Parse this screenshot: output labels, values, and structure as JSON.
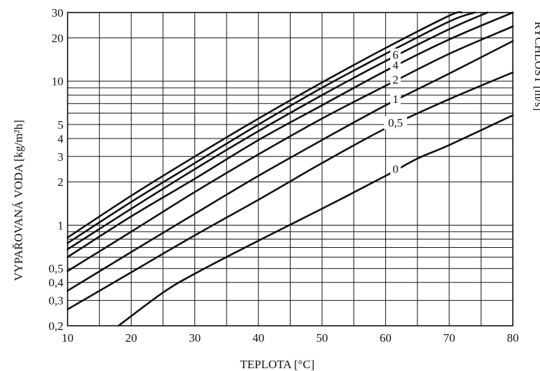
{
  "chart_data": {
    "type": "line",
    "xlabel": "TEPLOTA [°C]",
    "ylabel": "VYPAŘOVANÁ VODA [kg/m²h]",
    "y2label": "RYCHLOST [m/s]",
    "xlim": [
      10,
      80
    ],
    "ylim": [
      0.2,
      30
    ],
    "yscale": "log",
    "grid": true,
    "x_ticks": [
      10,
      20,
      30,
      40,
      50,
      60,
      70,
      80
    ],
    "y_ticks": [
      {
        "value": 0.2,
        "label": "0,2"
      },
      {
        "value": 0.3,
        "label": "0,3"
      },
      {
        "value": 0.4,
        "label": "0,4"
      },
      {
        "value": 0.5,
        "label": "0,5"
      },
      {
        "value": 1,
        "label": "1"
      },
      {
        "value": 2,
        "label": "2"
      },
      {
        "value": 3,
        "label": "3"
      },
      {
        "value": 4,
        "label": "4"
      },
      {
        "value": 5,
        "label": "5"
      },
      {
        "value": 10,
        "label": "10"
      },
      {
        "value": 20,
        "label": "20"
      },
      {
        "value": 30,
        "label": "30"
      }
    ],
    "y_minor_gridlines": [
      0.6,
      0.7,
      0.8,
      0.9,
      6,
      7,
      8,
      9
    ],
    "x_minor_gridlines": [
      15,
      25,
      35,
      45,
      55,
      65,
      75
    ],
    "series": [
      {
        "name": "0",
        "x": [
          18,
          25,
          30,
          40,
          50,
          60,
          65,
          70,
          80
        ],
        "y": [
          0.2,
          0.34,
          0.46,
          0.78,
          1.3,
          2.2,
          2.9,
          3.6,
          5.8
        ]
      },
      {
        "name": "0,5",
        "x": [
          10,
          20,
          30,
          40,
          50,
          60,
          70,
          80
        ],
        "y": [
          0.26,
          0.47,
          0.85,
          1.5,
          2.7,
          4.7,
          7.5,
          11.5
        ]
      },
      {
        "name": "1",
        "x": [
          10,
          20,
          30,
          40,
          50,
          60,
          70,
          80
        ],
        "y": [
          0.35,
          0.65,
          1.2,
          2.2,
          3.9,
          6.8,
          11.3,
          19
        ]
      },
      {
        "name": "2",
        "x": [
          10,
          20,
          30,
          40,
          50,
          60,
          70,
          80
        ],
        "y": [
          0.48,
          0.9,
          1.7,
          3.1,
          5.5,
          9.3,
          15.5,
          24
        ]
      },
      {
        "name": "4",
        "x": [
          10,
          20,
          30,
          40,
          50,
          60,
          70,
          80
        ],
        "y": [
          0.6,
          1.15,
          2.1,
          3.9,
          6.8,
          11.8,
          19.5,
          30
        ]
      },
      {
        "name": "6",
        "x": [
          10,
          20,
          30,
          40,
          50,
          60,
          70,
          76
        ],
        "y": [
          0.68,
          1.3,
          2.45,
          4.5,
          8.0,
          13.8,
          23,
          30
        ]
      },
      {
        "name": "",
        "x": [
          10,
          20,
          30,
          40,
          50,
          60,
          70,
          74
        ],
        "y": [
          0.75,
          1.45,
          2.7,
          5.0,
          9.0,
          15.5,
          26,
          30
        ]
      },
      {
        "name": "",
        "x": [
          10,
          20,
          30,
          40,
          50,
          60,
          70,
          72
        ],
        "y": [
          0.82,
          1.6,
          3.0,
          5.5,
          9.8,
          17,
          28.5,
          30
        ]
      }
    ]
  }
}
